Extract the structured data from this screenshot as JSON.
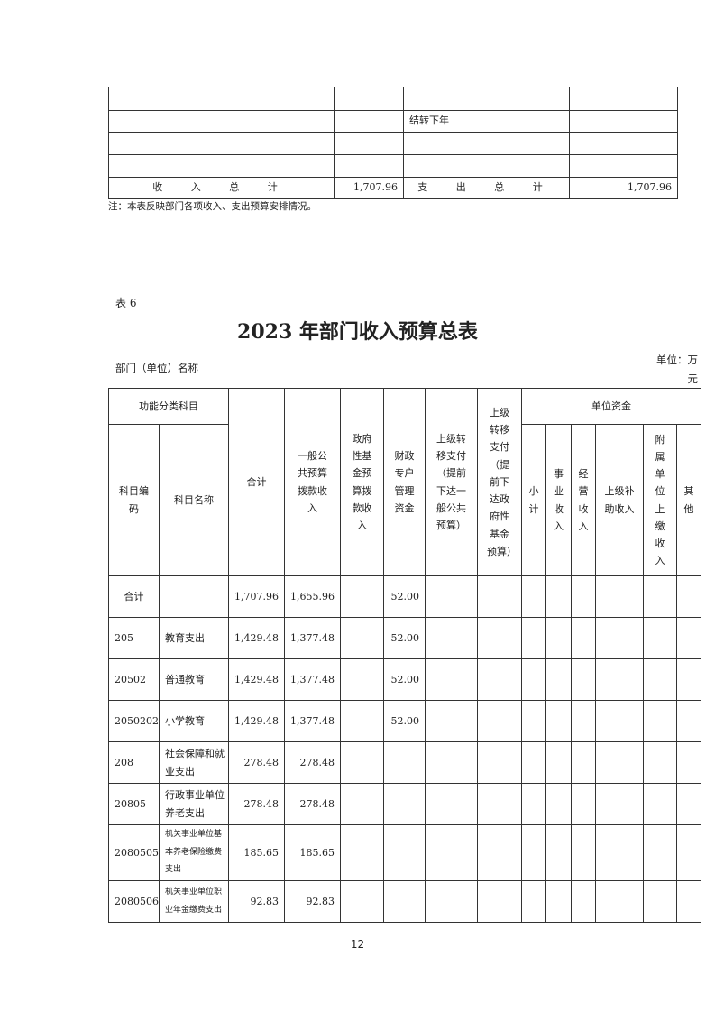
{
  "top_table": {
    "rows": [
      [
        "",
        "",
        "",
        ""
      ],
      [
        "",
        "",
        "结转下年",
        ""
      ],
      [
        "",
        "",
        "",
        ""
      ],
      [
        "",
        "",
        "",
        ""
      ]
    ],
    "total_row": {
      "income_label": "收 入 总 计",
      "income_value": "1,707.96",
      "expense_label": "支 出 总 计",
      "expense_value": "1,707.96"
    },
    "note": "注：本表反映部门各项收入、支出预算安排情况。"
  },
  "table_no": "表 6",
  "title": "2023 年部门收入预算总表",
  "dept_label": "部门（单位）名称",
  "unit_label": "单位：万元",
  "headers": {
    "func": "功能分类科目",
    "code": "科目编码",
    "name": "科目名称",
    "total": "合计",
    "general": "一般公共预算拨款收入",
    "gov_fund": "政府性基金预算拨款收入",
    "special": "财政专户管理资金",
    "transfer_general": "上级转移支付（提前下达一般公共预算）",
    "transfer_fund": "上级转移支付（提前下达政府性基金预算）",
    "unit_funds": "单位资金",
    "subtotal": "小计",
    "business": "事业收入",
    "operating": "经营收入",
    "subsidy": "上级补助收入",
    "affiliated": "附属单位上缴收入",
    "other": "其他"
  },
  "rows": [
    {
      "code": "合计",
      "name": "",
      "total": "1,707.96",
      "general": "1,655.96",
      "special": "52.00"
    },
    {
      "code": "205",
      "name": "教育支出",
      "total": "1,429.48",
      "general": "1,377.48",
      "special": "52.00"
    },
    {
      "code": "20502",
      "name": "普通教育",
      "total": "1,429.48",
      "general": "1,377.48",
      "special": "52.00"
    },
    {
      "code": "2050202",
      "name": "小学教育",
      "total": "1,429.48",
      "general": "1,377.48",
      "special": "52.00"
    },
    {
      "code": "208",
      "name": "社会保障和就业支出",
      "total": "278.48",
      "general": "278.48",
      "special": ""
    },
    {
      "code": "20805",
      "name": "行政事业单位养老支出",
      "total": "278.48",
      "general": "278.48",
      "special": ""
    },
    {
      "code": "2080505",
      "name": "机关事业单位基本养老保险缴费支出",
      "total": "185.65",
      "general": "185.65",
      "special": ""
    },
    {
      "code": "2080506",
      "name": "机关事业单位职业年金缴费支出",
      "total": "92.83",
      "general": "92.83",
      "special": ""
    }
  ],
  "page_number": "12"
}
